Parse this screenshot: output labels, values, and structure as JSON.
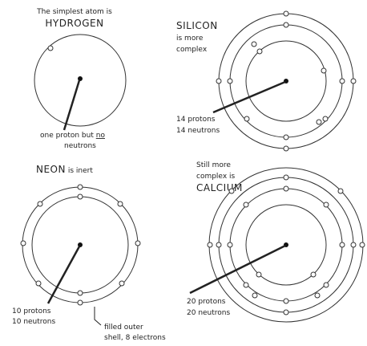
{
  "atoms": [
    {
      "caption": [
        "The simplest atom is",
        "HYDROGEN"
      ],
      "label": [
        "one proton but",
        "no",
        "neutrons"
      ]
    },
    {
      "caption": [
        "SILICON",
        "is more",
        "complex"
      ],
      "label": [
        "14 protons",
        "14 neutrons"
      ]
    },
    {
      "caption": [
        "NEON",
        "is inert"
      ],
      "label": [
        "10 protons",
        "10 neutrons"
      ],
      "note": [
        "filled outer",
        "shell, 8 electrons"
      ]
    },
    {
      "caption": [
        "Still more",
        "complex is",
        "CALCIUM"
      ],
      "label": [
        "20 protons",
        "20 neutrons"
      ]
    }
  ]
}
